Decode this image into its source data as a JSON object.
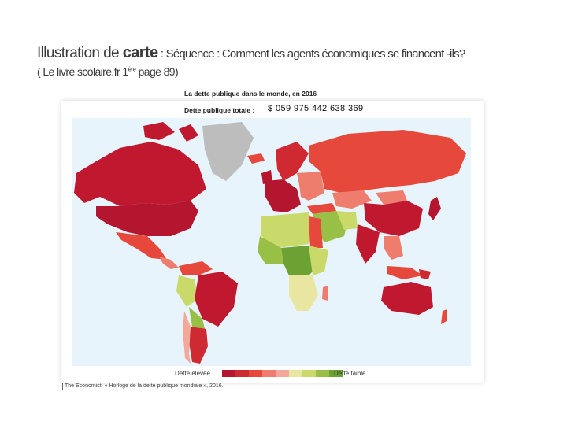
{
  "slide": {
    "title_part1": "Illustration de ",
    "title_strong": "carte",
    "title_part2": " : Séquence : Comment les agents économiques se financent -ils?",
    "subtitle_part1": "( Le livre scolaire.fr  1",
    "subtitle_sup": "ère",
    "subtitle_part2": " page 89)"
  },
  "map": {
    "title": "La dette publique dans le monde, en 2016",
    "total_label": "Dette publique totale :",
    "total_value": "$ 059 975 442 638 369",
    "legend_high": "Dette élevée",
    "legend_low": "Dette faible",
    "legend_colors": [
      "#b3162e",
      "#cf2a32",
      "#e6483c",
      "#ef7d6e",
      "#f3a89a",
      "#e8e6a0",
      "#c9d96a",
      "#98c046",
      "#6ba233"
    ],
    "ocean_color": "#e8f4fb",
    "no_data_color": "#bdbdbd",
    "source": "The Economist, « Horloge de la dette publique mondiale », 2016."
  }
}
